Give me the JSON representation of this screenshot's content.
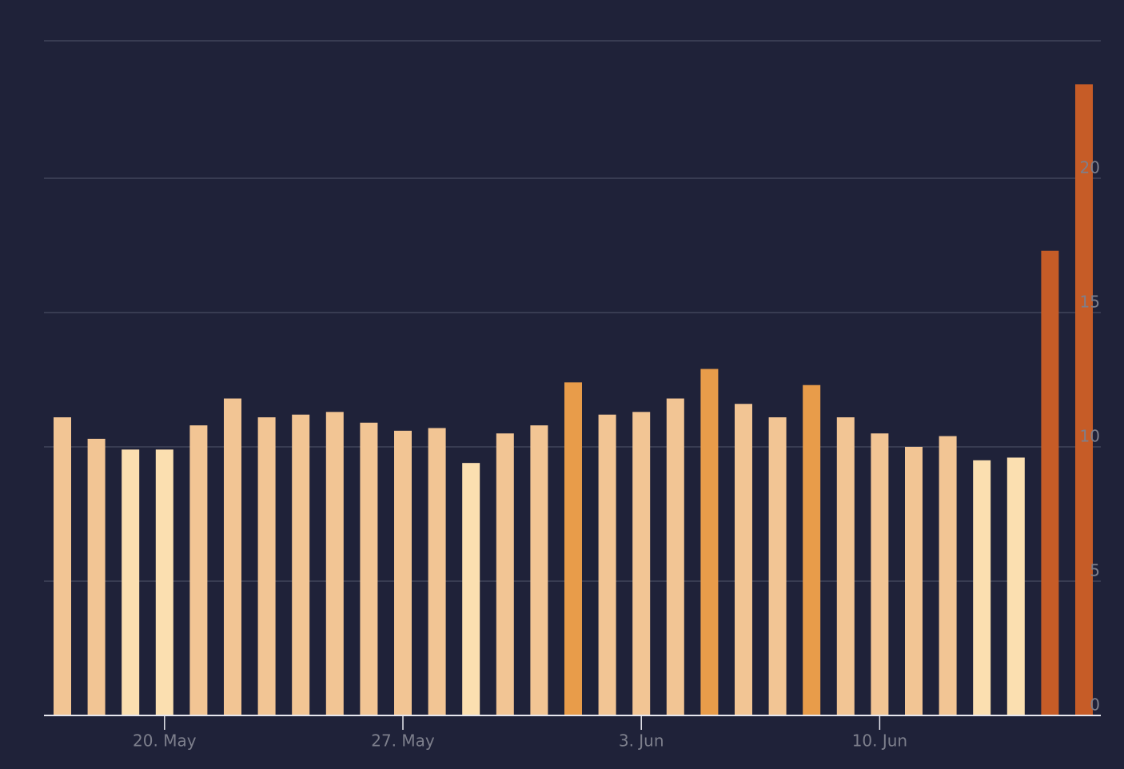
{
  "chart_data": {
    "type": "bar",
    "categories": [
      null,
      null,
      null,
      "20. May",
      null,
      null,
      null,
      null,
      null,
      null,
      "27. May",
      null,
      null,
      null,
      null,
      null,
      null,
      "3. Jun",
      null,
      null,
      null,
      null,
      null,
      null,
      "10. Jun",
      null,
      null,
      null,
      null,
      null,
      null
    ],
    "values": [
      11.1,
      10.3,
      9.9,
      9.9,
      10.8,
      11.8,
      11.1,
      11.2,
      11.3,
      10.9,
      10.6,
      10.7,
      9.4,
      10.5,
      10.8,
      12.4,
      11.2,
      11.3,
      11.8,
      12.9,
      11.6,
      11.1,
      12.3,
      11.1,
      10.5,
      10.0,
      10.4,
      9.5,
      9.6,
      17.3,
      23.5
    ],
    "colors": [
      "#f2c594",
      "#f2c594",
      "#fbdfb0",
      "#fbdfb0",
      "#f2c594",
      "#f2c594",
      "#f2c594",
      "#f2c594",
      "#f2c594",
      "#f2c594",
      "#f2c594",
      "#f2c594",
      "#fbdfb0",
      "#f2c594",
      "#f2c594",
      "#e89c4a",
      "#f2c594",
      "#f2c594",
      "#f2c594",
      "#e89c4a",
      "#f2c594",
      "#f2c594",
      "#e89c4a",
      "#f2c594",
      "#f2c594",
      "#f2c594",
      "#f2c594",
      "#fbdfb0",
      "#fbdfb0",
      "#c65c27",
      "#c65c27"
    ],
    "ylim": [
      0,
      25
    ],
    "yticks": [
      0,
      5,
      10,
      15,
      20
    ],
    "grid": true
  }
}
